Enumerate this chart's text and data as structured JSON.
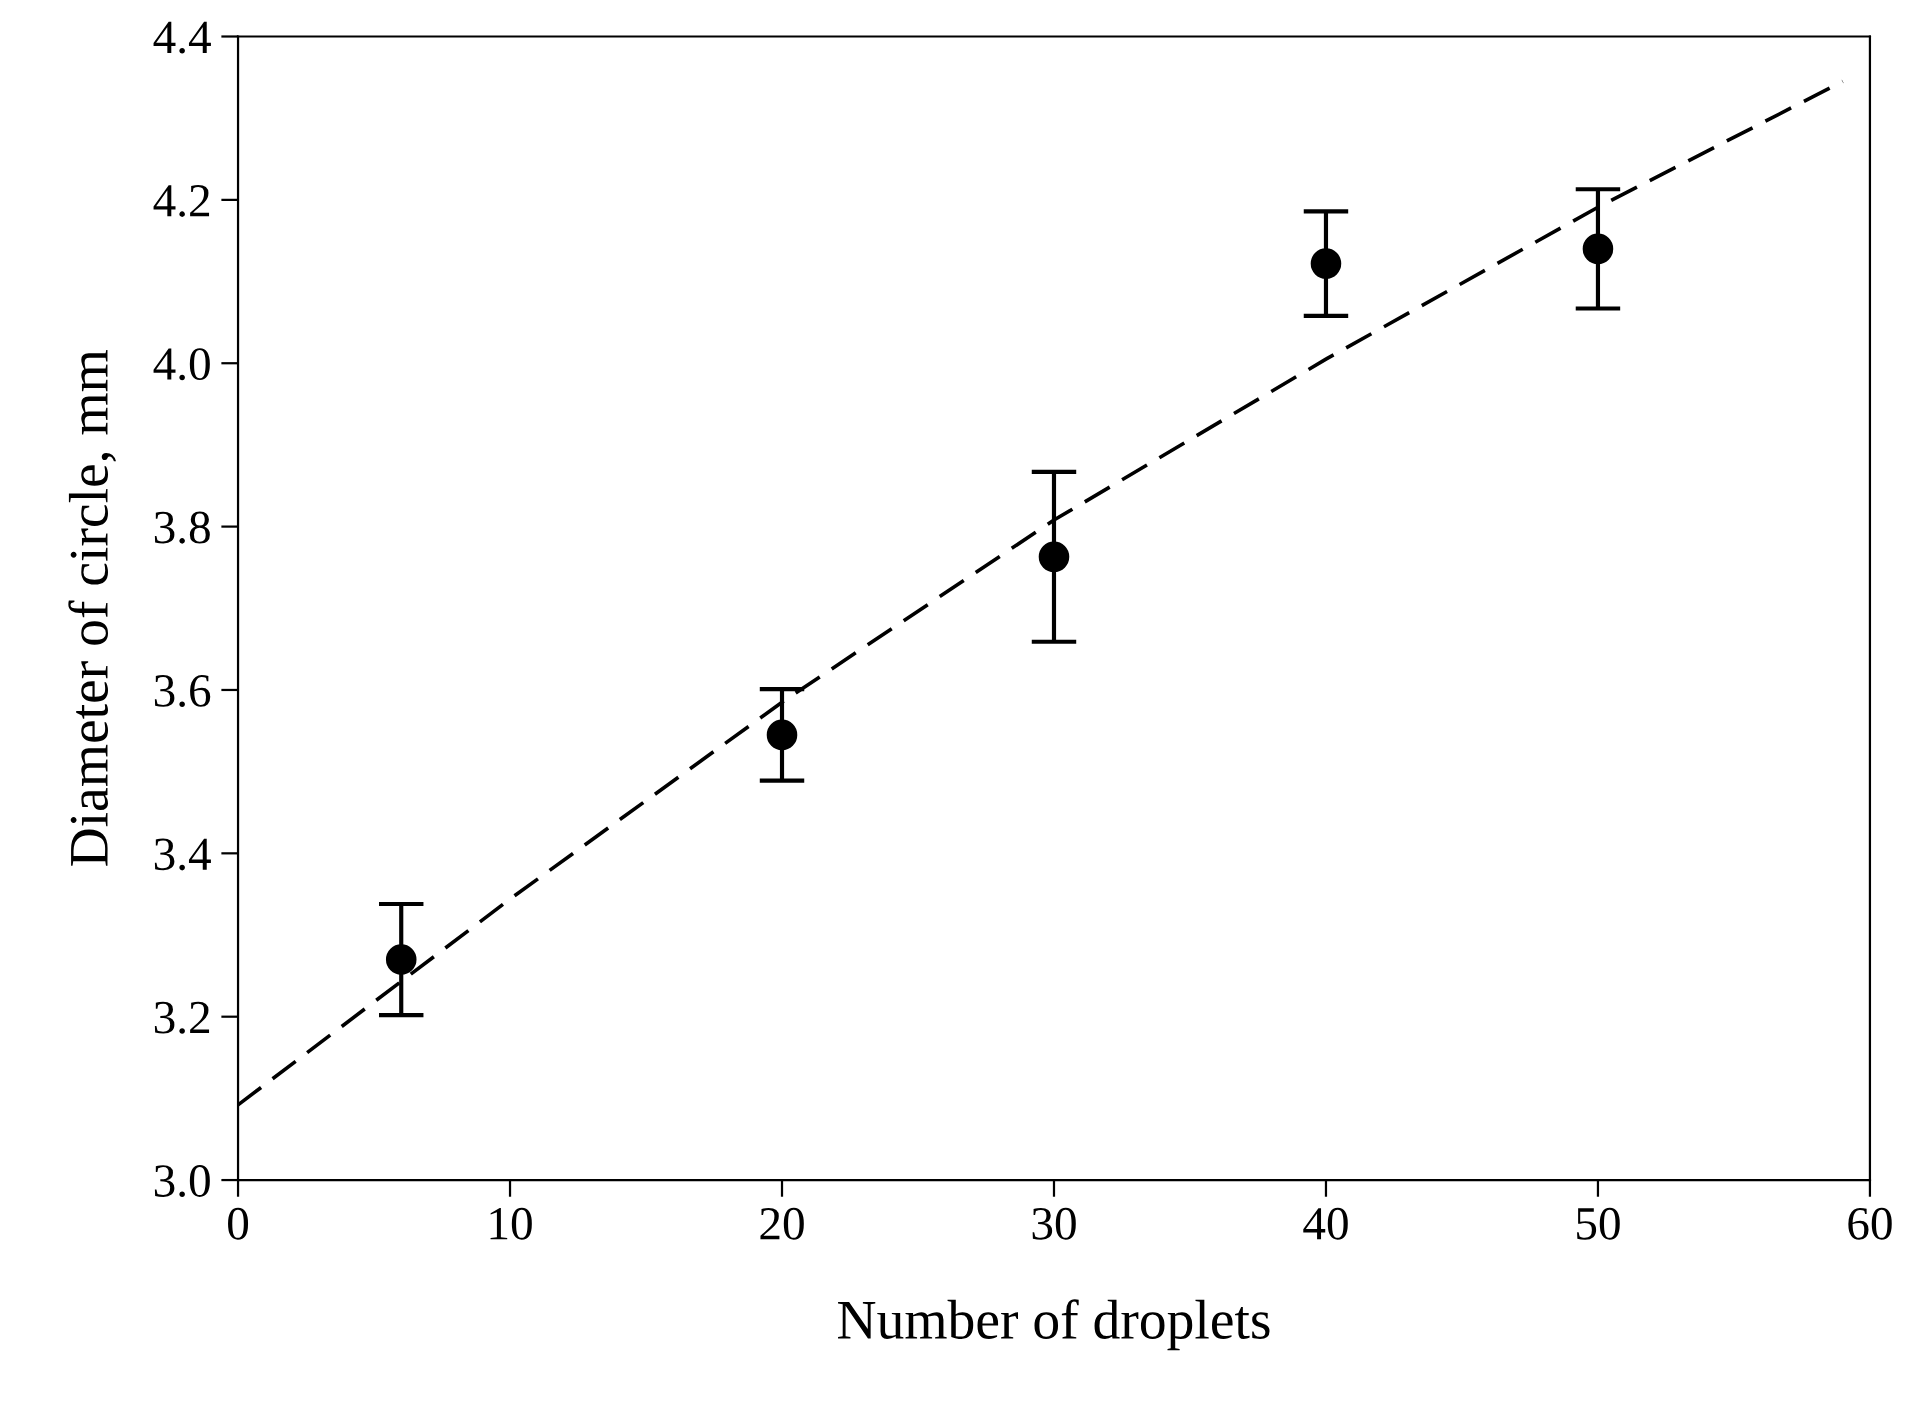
{
  "chart_data": {
    "type": "scatter",
    "xlabel": "Number of droplets",
    "ylabel": "Diameter of circle, mm",
    "xlim": [
      0,
      60
    ],
    "xticks": [
      0,
      10,
      20,
      30,
      40,
      50,
      60
    ],
    "ylim": [
      3.0,
      4.4
    ],
    "yticks": [
      {
        "value": 3.0,
        "label": "3.0"
      },
      {
        "value": 3.2,
        "label": "3.2"
      },
      {
        "value": 3.4,
        "label": "3.4"
      },
      {
        "value": 3.6,
        "label": "3.6"
      },
      {
        "value": 3.8,
        "label": "3.8"
      },
      {
        "value": 4.0,
        "label": "4.0"
      },
      {
        "value": 4.2,
        "label": "4.2"
      },
      {
        "value": 4.4,
        "label": "4.4"
      }
    ],
    "grid": false,
    "legend": false,
    "series": [
      {
        "color": "#000000",
        "marker": "circle",
        "x": [
          6,
          20,
          30,
          40,
          50
        ],
        "values": [
          3.27,
          3.545,
          3.763,
          4.122,
          4.14
        ],
        "errors": [
          0.068,
          0.056,
          0.104,
          0.064,
          0.073
        ]
      },
      {
        "type": "line",
        "color": "#000000",
        "line_style": "dashed",
        "marker": "none",
        "x": [
          0,
          10,
          20,
          30,
          40,
          50,
          59
        ],
        "values": [
          3.092,
          3.344,
          3.585,
          3.808,
          4.005,
          4.191,
          4.345
        ]
      }
    ]
  }
}
